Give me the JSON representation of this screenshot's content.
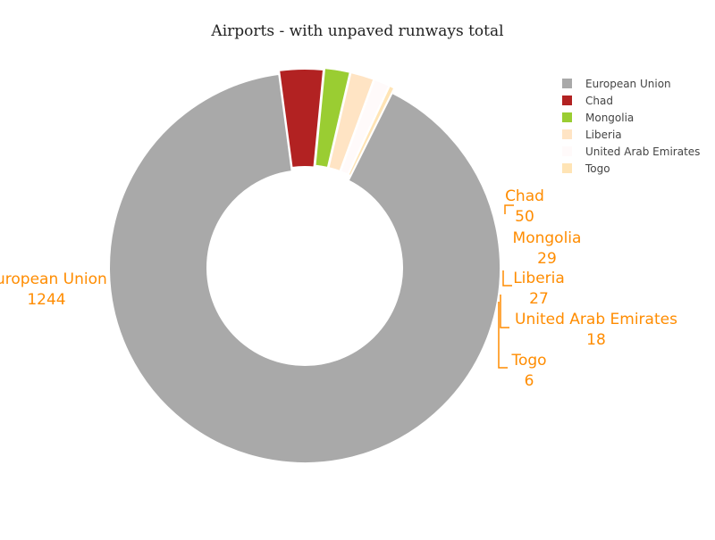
{
  "chart_data": {
    "type": "pie",
    "title": "Airports - with unpaved runways total",
    "hole": true,
    "legend_position": "top-right",
    "label_color": "#ff8c00",
    "slices": [
      {
        "label": "European Union",
        "value": 1244,
        "color": "#a9a9a9"
      },
      {
        "label": "Chad",
        "value": 50,
        "color": "#b22222"
      },
      {
        "label": "Mongolia",
        "value": 29,
        "color": "#9acd32"
      },
      {
        "label": "Liberia",
        "value": 27,
        "color": "#ffe4c4"
      },
      {
        "label": "United Arab Emirates",
        "value": 18,
        "color": "#fffafa"
      },
      {
        "label": "Togo",
        "value": 6,
        "color": "#ffe4b5"
      }
    ]
  }
}
